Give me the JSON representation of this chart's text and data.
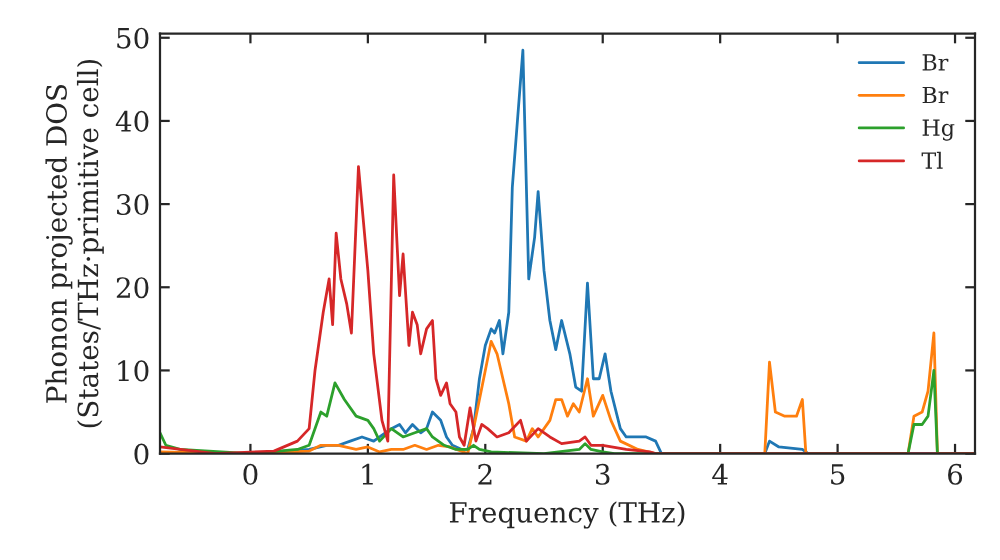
{
  "chart_data": {
    "type": "line",
    "xlabel": "Frequency (THz)",
    "ylabel": "Phonon projected DOS\n(States/THz·primitive cell)",
    "xlim": [
      -0.77,
      6.17
    ],
    "ylim": [
      0,
      50.5
    ],
    "xticks": [
      0,
      1,
      2,
      3,
      4,
      5,
      6
    ],
    "yticks": [
      0,
      10,
      20,
      30,
      40,
      50
    ],
    "grid": false,
    "legend": "top right",
    "series": [
      {
        "name": "Br",
        "color": "#1f77b4",
        "x": [
          0,
          0.5,
          0.65,
          0.75,
          0.85,
          0.95,
          1.05,
          1.1,
          1.2,
          1.27,
          1.32,
          1.38,
          1.45,
          1.5,
          1.55,
          1.62,
          1.67,
          1.72,
          1.8,
          1.85,
          1.9,
          1.95,
          2.0,
          2.05,
          2.08,
          2.12,
          2.15,
          2.2,
          2.23,
          2.32,
          2.37,
          2.42,
          2.45,
          2.5,
          2.55,
          2.6,
          2.65,
          2.72,
          2.77,
          2.82,
          2.87,
          2.92,
          2.97,
          3.02,
          3.07,
          3.15,
          3.2,
          3.3,
          3.37,
          3.45,
          3.5,
          4.38,
          4.42,
          4.5,
          4.7,
          4.75,
          6.17
        ],
        "values": [
          0,
          0.5,
          1,
          1,
          1.5,
          2,
          1.5,
          2,
          3,
          3.5,
          2.5,
          3.5,
          2.5,
          3,
          5,
          4,
          2,
          1,
          0.5,
          0.5,
          3,
          9,
          13,
          15,
          14.5,
          16,
          12,
          17,
          32,
          48.5,
          21,
          26,
          31.5,
          22,
          16,
          12.5,
          16,
          12,
          8,
          7.5,
          20.5,
          9,
          9,
          12,
          7.5,
          3,
          2,
          2,
          2,
          1.5,
          0,
          0,
          1.5,
          0.8,
          0.5,
          0,
          0
        ]
      },
      {
        "name": "Br",
        "color": "#ff7f0e",
        "x": [
          -0.77,
          0,
          0.5,
          0.6,
          0.75,
          0.9,
          1.0,
          1.1,
          1.2,
          1.3,
          1.4,
          1.5,
          1.6,
          1.7,
          1.85,
          1.9,
          2.0,
          2.05,
          2.1,
          2.15,
          2.2,
          2.25,
          2.35,
          2.4,
          2.45,
          2.55,
          2.6,
          2.65,
          2.7,
          2.75,
          2.8,
          2.87,
          2.92,
          3.0,
          3.07,
          3.15,
          3.3,
          3.45,
          4.38,
          4.42,
          4.47,
          4.55,
          4.65,
          4.7,
          4.73,
          5.6,
          5.65,
          5.72,
          5.77,
          5.82,
          5.85,
          6.17
        ],
        "values": [
          0.2,
          0,
          0.3,
          1,
          1,
          0.5,
          0.8,
          0.2,
          0.5,
          0.5,
          1,
          0.5,
          1,
          0.8,
          0,
          3,
          10,
          13.5,
          12,
          9,
          6,
          2,
          1.5,
          3,
          2,
          4,
          6.5,
          6.5,
          4.5,
          6,
          5,
          9,
          4.5,
          7,
          4,
          1.5,
          0.5,
          0,
          0,
          11,
          5,
          4.5,
          4.5,
          6.5,
          0,
          0,
          4.5,
          5,
          7.5,
          14.5,
          0,
          0
        ]
      },
      {
        "name": "Hg",
        "color": "#2ca02c",
        "x": [
          -0.77,
          -0.72,
          -0.6,
          0,
          0.4,
          0.5,
          0.6,
          0.65,
          0.72,
          0.8,
          0.9,
          1.0,
          1.05,
          1.1,
          1.2,
          1.3,
          1.4,
          1.5,
          1.55,
          1.65,
          1.75,
          1.85,
          1.9,
          1.95,
          2.05,
          2.5,
          2.8,
          2.85,
          2.9,
          3.0,
          3.1,
          5.6,
          5.65,
          5.72,
          5.77,
          5.82,
          5.85,
          6.17
        ],
        "values": [
          2.5,
          1,
          0.5,
          0,
          0.5,
          1,
          5,
          4.5,
          8.5,
          6.5,
          4.5,
          4,
          3,
          1.5,
          3,
          2,
          2.5,
          3,
          2,
          1,
          0.5,
          0.5,
          1,
          0.5,
          0.2,
          0,
          0.5,
          1.2,
          0.5,
          0.2,
          0,
          0,
          3.5,
          3.5,
          4.5,
          10,
          0,
          0
        ]
      },
      {
        "name": "Tl",
        "color": "#d62728",
        "x": [
          -0.77,
          -0.3,
          0.2,
          0.4,
          0.5,
          0.55,
          0.62,
          0.67,
          0.7,
          0.73,
          0.77,
          0.82,
          0.86,
          0.92,
          1.0,
          1.05,
          1.12,
          1.17,
          1.22,
          1.27,
          1.3,
          1.35,
          1.38,
          1.42,
          1.45,
          1.5,
          1.55,
          1.58,
          1.62,
          1.67,
          1.7,
          1.75,
          1.78,
          1.82,
          1.87,
          1.92,
          1.97,
          2.02,
          2.1,
          2.2,
          2.3,
          2.35,
          2.45,
          2.55,
          2.65,
          2.8,
          2.85,
          2.9,
          3.0,
          3.2,
          3.4,
          3.45,
          6.17
        ],
        "values": [
          0.8,
          0,
          0.3,
          1.5,
          3,
          10,
          17,
          21,
          15.5,
          26.5,
          21,
          18,
          14.5,
          34.5,
          22,
          12,
          4,
          1.5,
          33.5,
          19,
          24,
          13,
          17,
          15.5,
          12,
          15,
          16,
          9,
          7,
          8.5,
          6,
          5,
          2,
          1,
          5.5,
          1.5,
          3.5,
          3,
          2,
          2.5,
          4,
          1.5,
          3,
          2,
          1.2,
          1.5,
          2,
          1,
          1,
          0.5,
          0.2,
          0,
          0
        ]
      }
    ]
  }
}
